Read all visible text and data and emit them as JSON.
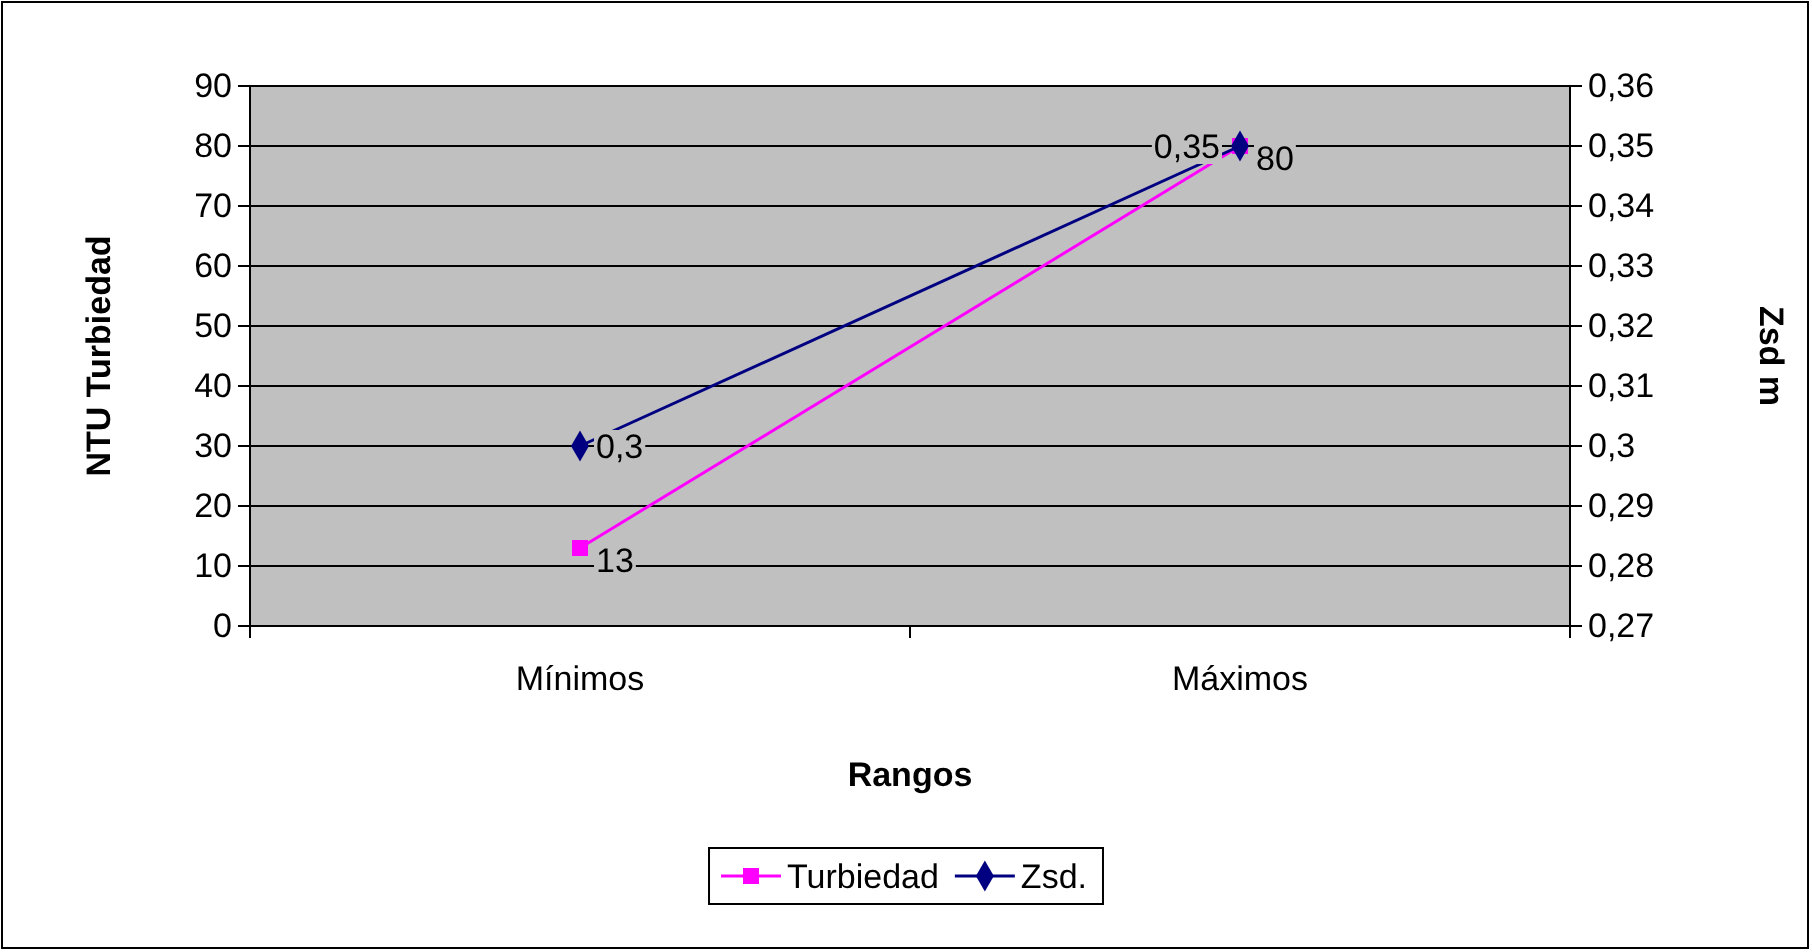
{
  "chart_data": {
    "type": "line",
    "xlabel": "Rangos",
    "ylabel": "NTU Turbiedad",
    "y2label": "Zsd m",
    "categories": [
      "Mínimos",
      "Máximos"
    ],
    "series": [
      {
        "name": "Turbiedad",
        "color": "#ff00ff",
        "marker": "square",
        "values": [
          13,
          80
        ],
        "value_labels": [
          "13",
          "80"
        ]
      },
      {
        "name": "Zsd.",
        "color": "#000080",
        "marker": "diamond",
        "axis": "y2",
        "values": [
          0.3,
          0.35
        ],
        "value_labels": [
          "0,3",
          "0,35"
        ]
      }
    ],
    "ylim": [
      0,
      90
    ],
    "yticks": [
      0,
      10,
      20,
      30,
      40,
      50,
      60,
      70,
      80,
      90
    ],
    "y2lim": [
      0.27,
      0.36
    ],
    "y2ticks": [
      {
        "value": 0.27,
        "label": "0,27"
      },
      {
        "value": 0.28,
        "label": "0,28"
      },
      {
        "value": 0.29,
        "label": "0,29"
      },
      {
        "value": 0.3,
        "label": "0,3"
      },
      {
        "value": 0.31,
        "label": "0,31"
      },
      {
        "value": 0.32,
        "label": "0,32"
      },
      {
        "value": 0.33,
        "label": "0,33"
      },
      {
        "value": 0.34,
        "label": "0,34"
      },
      {
        "value": 0.35,
        "label": "0,35"
      },
      {
        "value": 0.36,
        "label": "0,36"
      }
    ],
    "grid": "y",
    "legend": "bottom"
  }
}
